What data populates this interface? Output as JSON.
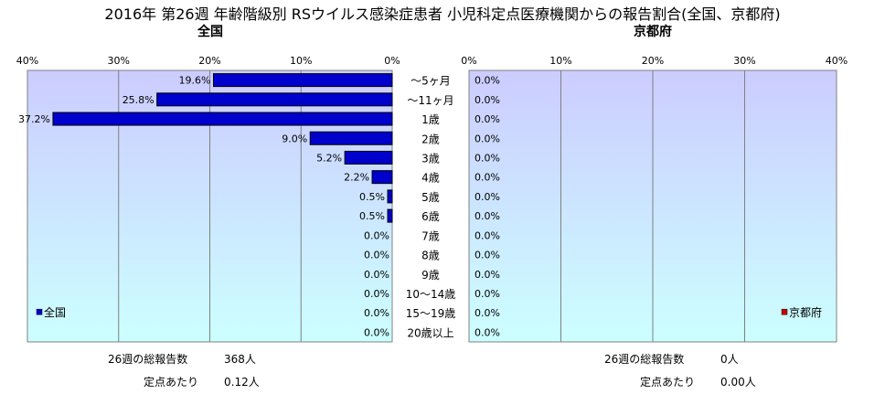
{
  "title": "2016年 第26週 年齢階級別 RSウイルス感染症患者 小児科定点医療機関からの報告割合(全国、京都府)",
  "colors": {
    "bar_fill": "#0000cc",
    "bar_stroke": "#000000",
    "plot_top": "#ccccff",
    "plot_bottom": "#ccffff",
    "gridline": "#808080",
    "kyoto_legend": "#cc0000"
  },
  "chart_data": [
    {
      "type": "bar",
      "orientation": "horizontal",
      "direction": "right-to-left",
      "title": "全国",
      "categories": [
        "～5ヶ月",
        "～11ヶ月",
        "1歳",
        "2歳",
        "3歳",
        "4歳",
        "5歳",
        "6歳",
        "7歳",
        "8歳",
        "9歳",
        "10～14歳",
        "15～19歳",
        "20歳以上"
      ],
      "series": [
        {
          "name": "全国",
          "values": [
            19.6,
            25.8,
            37.2,
            9.0,
            5.2,
            2.2,
            0.5,
            0.5,
            0.0,
            0.0,
            0.0,
            0.0,
            0.0,
            0.0
          ]
        }
      ],
      "data_labels": [
        "19.6%",
        "25.8%",
        "37.2%",
        "9.0%",
        "5.2%",
        "2.2%",
        "0.5%",
        "0.5%",
        "0.0%",
        "0.0%",
        "0.0%",
        "0.0%",
        "0.0%",
        "0.0%"
      ],
      "xlim": [
        0,
        40
      ],
      "ticks": [
        "40%",
        "30%",
        "20%",
        "10%",
        "0%"
      ],
      "grid": true,
      "legend": "bottom-left"
    },
    {
      "type": "bar",
      "orientation": "horizontal",
      "direction": "left-to-right",
      "title": "京都府",
      "categories": [
        "～5ヶ月",
        "～11ヶ月",
        "1歳",
        "2歳",
        "3歳",
        "4歳",
        "5歳",
        "6歳",
        "7歳",
        "8歳",
        "9歳",
        "10～14歳",
        "15～19歳",
        "20歳以上"
      ],
      "series": [
        {
          "name": "京都府",
          "values": [
            0.0,
            0.0,
            0.0,
            0.0,
            0.0,
            0.0,
            0.0,
            0.0,
            0.0,
            0.0,
            0.0,
            0.0,
            0.0,
            0.0
          ]
        }
      ],
      "data_labels": [
        "0.0%",
        "0.0%",
        "0.0%",
        "0.0%",
        "0.0%",
        "0.0%",
        "0.0%",
        "0.0%",
        "0.0%",
        "0.0%",
        "0.0%",
        "0.0%",
        "0.0%",
        "0.0%"
      ],
      "xlim": [
        0,
        40
      ],
      "ticks": [
        "0%",
        "10%",
        "20%",
        "30%",
        "40%"
      ],
      "grid": true,
      "legend": "bottom-right"
    }
  ],
  "summary": {
    "national": {
      "reports_label": "26週の総報告数",
      "reports_value": "368人",
      "per_site_label": "定点あたり",
      "per_site_value": "0.12人"
    },
    "kyoto": {
      "reports_label": "26週の総報告数",
      "reports_value": "0人",
      "per_site_label": "定点あたり",
      "per_site_value": "0.00人"
    }
  }
}
